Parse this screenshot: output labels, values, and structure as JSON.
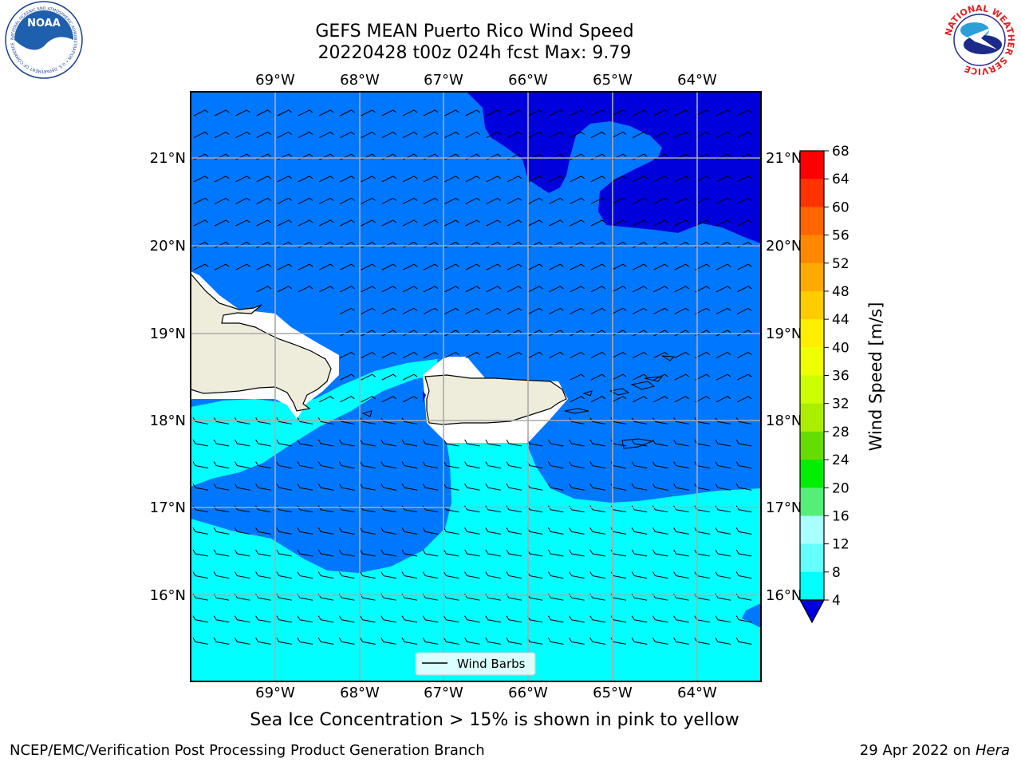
{
  "title_line1": "GEFS MEAN Puerto Rico Wind Speed",
  "title_line2": "20220428 t00z 024h fcst   Max: 9.79",
  "lon_labels": [
    "69°W",
    "68°W",
    "67°W",
    "66°W",
    "65°W",
    "64°W"
  ],
  "lat_labels": [
    "21°N",
    "20°N",
    "19°N",
    "18°N",
    "17°N",
    "16°N"
  ],
  "legend_label": "Wind Barbs",
  "colorbar": {
    "label": "Wind Speed [m/s]",
    "ticks": [
      "68",
      "64",
      "60",
      "56",
      "52",
      "48",
      "44",
      "40",
      "36",
      "32",
      "28",
      "24",
      "20",
      "16",
      "12",
      "8",
      "4"
    ],
    "colors": [
      "#ff0000",
      "#ff3300",
      "#ff6600",
      "#ff8800",
      "#ffaa00",
      "#ffcc00",
      "#ffee00",
      "#eeff00",
      "#ccff00",
      "#aaee00",
      "#66dd00",
      "#00ee00",
      "#55ee77",
      "#aaffff",
      "#66ffff",
      "#00ffff",
      "#0077ff"
    ],
    "extend_color": "#0000dd"
  },
  "map_colors": {
    "deep": "#0000dd",
    "mid": "#0077ff",
    "light": "#00ffff",
    "land": "#eeecdb"
  },
  "logos": {
    "noaa_text": "NOAA",
    "noaa_ring": "NATIONAL OCEANIC AND ATMOSPHERIC ADMINISTRATION • U.S. DEPARTMENT OF COMMERCE",
    "nws_ring": "NATIONAL WEATHER SERVICE"
  },
  "caption": "Sea Ice Concentration > 15% is shown in pink to yellow",
  "footer_left": "NCEP/EMC/Verification Post Processing Product Generation Branch",
  "footer_right_prefix": "29 Apr 2022 on ",
  "footer_right_machine": "Hera"
}
